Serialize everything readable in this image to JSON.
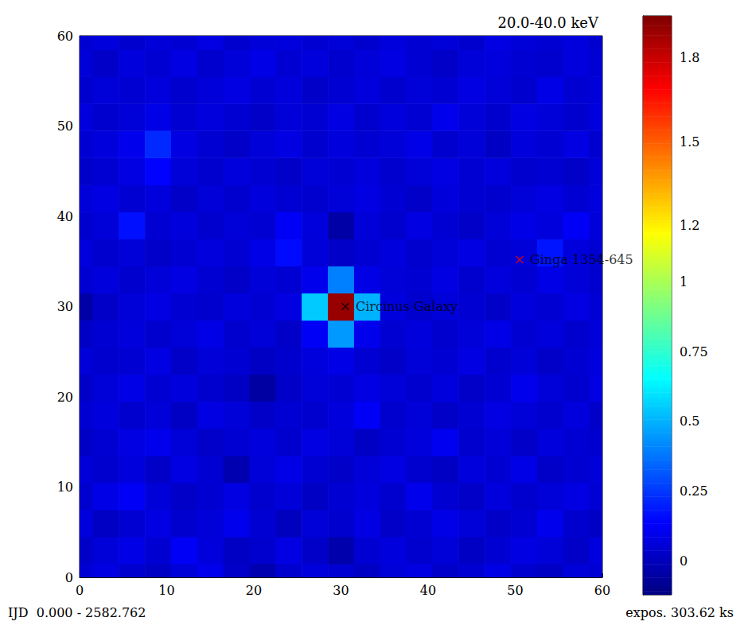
{
  "chart_data": {
    "type": "heatmap",
    "title": "20.0-40.0 keV",
    "footer_left": "IJD  0.000 - 2582.762",
    "footer_right": "expos. 303.62 ks",
    "x": [
      0,
      3,
      6,
      9,
      12,
      15,
      18,
      21,
      24,
      27,
      30,
      33,
      36,
      39,
      42,
      45,
      48,
      51,
      54,
      57,
      60
    ],
    "y": [
      0,
      3,
      6,
      9,
      12,
      15,
      18,
      21,
      24,
      27,
      30,
      33,
      36,
      39,
      42,
      45,
      48,
      51,
      54,
      57,
      60
    ],
    "values": [
      [
        0.05,
        0.08,
        0.04,
        0.02,
        0.06,
        0.1,
        0.03,
        -0.02,
        0.04,
        0.07,
        0.05,
        0.02,
        0.06,
        0.08,
        0.03,
        0.05,
        0.09,
        0.04,
        0.02,
        0.06,
        0.05
      ],
      [
        0.03,
        0.06,
        0.09,
        0.05,
        0.12,
        0.07,
        0.02,
        0.04,
        0.08,
        0.03,
        -0.03,
        0.05,
        0.07,
        0.04,
        0.06,
        0.02,
        0.05,
        0.08,
        0.06,
        0.03,
        0.07
      ],
      [
        0.07,
        0.02,
        0.05,
        0.08,
        0.04,
        0.06,
        0.1,
        0.05,
        0.01,
        0.06,
        0.04,
        0.08,
        0.03,
        0.05,
        0.09,
        0.06,
        0.03,
        0.05,
        0.1,
        0.04,
        0.02
      ],
      [
        0.04,
        0.09,
        0.12,
        0.06,
        0.03,
        0.05,
        0.08,
        0.04,
        0.06,
        0.02,
        0.05,
        0.07,
        0.04,
        0.1,
        0.05,
        0.03,
        0.07,
        0.04,
        0.06,
        0.08,
        0.05
      ],
      [
        0.06,
        0.04,
        0.07,
        0.03,
        0.08,
        0.05,
        -0.02,
        0.06,
        0.09,
        0.05,
        0.03,
        0.06,
        0.08,
        0.04,
        0.02,
        0.07,
        0.05,
        0.09,
        0.03,
        0.05,
        0.06
      ],
      [
        0.02,
        0.05,
        0.08,
        0.1,
        0.06,
        0.03,
        0.05,
        0.07,
        0.04,
        0.08,
        0.06,
        0.02,
        0.05,
        0.07,
        0.11,
        0.04,
        0.06,
        0.03,
        0.07,
        0.05,
        0.04
      ],
      [
        0.05,
        0.07,
        0.04,
        0.06,
        0.02,
        0.08,
        0.06,
        0.03,
        0.05,
        0.04,
        0.07,
        0.12,
        0.04,
        0.06,
        0.03,
        0.05,
        0.08,
        0.06,
        0.04,
        0.07,
        0.03
      ],
      [
        0.03,
        0.06,
        0.09,
        0.05,
        0.07,
        0.04,
        0.02,
        -0.05,
        0.03,
        0.06,
        0.05,
        0.08,
        0.06,
        0.04,
        0.07,
        0.03,
        0.05,
        0.1,
        0.06,
        0.04,
        0.08
      ],
      [
        0.06,
        0.04,
        0.05,
        0.08,
        0.03,
        0.06,
        0.05,
        0.02,
        0.04,
        0.07,
        0.09,
        0.05,
        0.03,
        0.06,
        0.05,
        0.08,
        0.04,
        0.06,
        0.03,
        0.05,
        0.07
      ],
      [
        0.02,
        0.05,
        0.07,
        0.04,
        0.06,
        0.09,
        0.04,
        0.06,
        0.03,
        0.12,
        0.45,
        0.1,
        0.05,
        0.07,
        0.04,
        0.06,
        0.09,
        0.05,
        0.07,
        0.04,
        0.06
      ],
      [
        -0.04,
        0.03,
        0.06,
        0.08,
        0.05,
        0.04,
        0.07,
        0.05,
        0.08,
        0.55,
        1.9,
        0.5,
        0.07,
        0.04,
        0.06,
        0.05,
        0.03,
        0.07,
        0.05,
        0.08,
        0.05
      ],
      [
        0.05,
        0.07,
        0.04,
        0.06,
        0.08,
        0.05,
        0.03,
        0.06,
        0.05,
        0.1,
        0.4,
        0.09,
        0.06,
        0.05,
        0.08,
        0.04,
        0.07,
        0.05,
        0.09,
        0.06,
        0.04
      ],
      [
        0.07,
        0.04,
        0.06,
        0.03,
        0.05,
        0.07,
        0.05,
        0.09,
        0.16,
        0.06,
        0.03,
        0.05,
        0.07,
        0.04,
        0.06,
        0.08,
        0.05,
        0.06,
        0.18,
        0.07,
        0.05
      ],
      [
        0.04,
        0.06,
        0.17,
        0.05,
        0.07,
        0.04,
        0.06,
        0.05,
        0.12,
        0.07,
        -0.04,
        0.06,
        0.04,
        0.08,
        0.05,
        0.03,
        0.06,
        0.09,
        0.07,
        0.12,
        0.06
      ],
      [
        0.06,
        0.08,
        0.05,
        0.07,
        0.03,
        0.06,
        0.04,
        0.07,
        0.05,
        0.04,
        0.06,
        0.08,
        0.05,
        0.03,
        0.07,
        0.05,
        0.04,
        0.06,
        0.08,
        0.05,
        0.07
      ],
      [
        0.03,
        0.05,
        0.08,
        0.14,
        0.06,
        0.04,
        0.07,
        0.05,
        0.03,
        0.06,
        0.05,
        0.07,
        0.04,
        0.06,
        0.08,
        0.05,
        0.07,
        0.04,
        0.05,
        0.03,
        0.06
      ],
      [
        0.05,
        0.07,
        0.1,
        0.22,
        0.08,
        0.05,
        0.03,
        0.06,
        0.08,
        0.04,
        0.07,
        0.05,
        0.06,
        0.09,
        0.04,
        0.06,
        0.02,
        0.07,
        0.05,
        0.08,
        0.04
      ],
      [
        0.07,
        0.04,
        0.06,
        0.09,
        0.05,
        0.07,
        0.05,
        0.03,
        0.06,
        0.05,
        0.08,
        0.04,
        0.07,
        0.05,
        0.1,
        0.06,
        0.04,
        0.08,
        0.06,
        0.04,
        0.07
      ],
      [
        0.04,
        0.06,
        0.05,
        0.07,
        0.04,
        0.06,
        0.08,
        0.05,
        0.07,
        0.03,
        0.05,
        0.07,
        0.04,
        0.06,
        0.05,
        0.08,
        0.06,
        0.04,
        0.09,
        0.05,
        0.06
      ],
      [
        0.06,
        0.03,
        0.07,
        0.05,
        0.08,
        0.04,
        0.06,
        0.09,
        0.05,
        0.07,
        0.04,
        0.06,
        0.08,
        0.05,
        0.03,
        0.06,
        0.07,
        0.05,
        0.04,
        0.07,
        0.05
      ],
      [
        0.05,
        0.07,
        0.04,
        0.06,
        0.05,
        0.08,
        0.04,
        0.06,
        0.07,
        0.05,
        0.06,
        0.04,
        0.07,
        0.05,
        0.06,
        0.04,
        0.08,
        0.06,
        0.05,
        0.07,
        0.04
      ]
    ],
    "xlim": [
      0,
      60
    ],
    "ylim": [
      0,
      60
    ],
    "xticks": [
      0,
      10,
      20,
      30,
      40,
      50,
      60
    ],
    "yticks": [
      0,
      10,
      20,
      30,
      40,
      50,
      60
    ],
    "colorbar": {
      "range": [
        -0.12,
        1.95
      ],
      "ticks": [
        0,
        0.25,
        0.5,
        0.75,
        1,
        1.2,
        1.5,
        1.8
      ]
    },
    "annotations": [
      {
        "text": "Circinus Galaxy",
        "x": 30.5,
        "y": 30,
        "color": "#000000",
        "marker": "x"
      },
      {
        "text": "Ginga 1354-645",
        "x": 50.5,
        "y": 35.2,
        "color": "#ff0000",
        "marker": "x"
      }
    ],
    "grid": false
  }
}
